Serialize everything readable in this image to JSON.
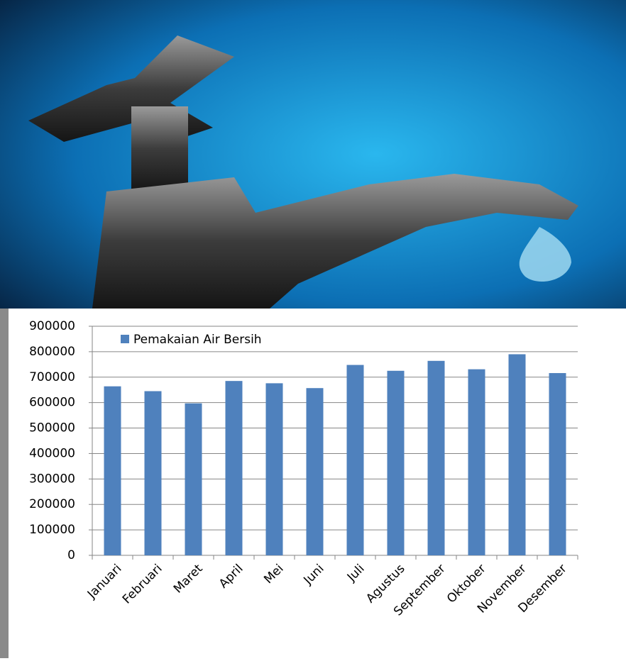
{
  "chart_data": {
    "type": "bar",
    "categories": [
      "Januari",
      "Februari",
      "Maret",
      "April",
      "Mei",
      "Juni",
      "Juli",
      "Agustus",
      "September",
      "Oktober",
      "November",
      "Desember"
    ],
    "series": [
      {
        "name": "Pemakaian Air Bersih",
        "color": "#4f81bd",
        "values": [
          664000,
          645000,
          597000,
          685000,
          676000,
          657000,
          748000,
          725000,
          764000,
          731000,
          790000,
          716000
        ]
      }
    ],
    "ylim": [
      0,
      900000
    ],
    "yticks": [
      0,
      100000,
      200000,
      300000,
      400000,
      500000,
      600000,
      700000,
      800000,
      900000
    ],
    "grid": true,
    "legend": "top-left"
  }
}
